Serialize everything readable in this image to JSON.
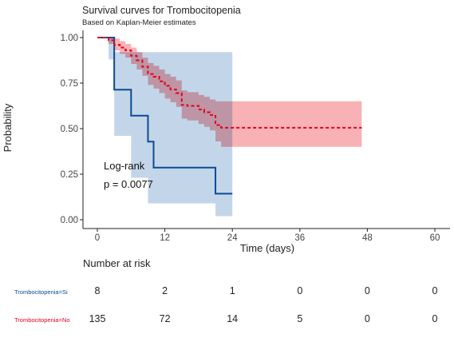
{
  "title": "Survival curves for Trombocitopenia",
  "subtitle": "Based on Kaplan-Meier estimates",
  "colors": {
    "si": "#0b4a96",
    "no": "#e3001b",
    "si_band": "#a9c5df",
    "no_band": "#f7a4a8",
    "overlap": "#c9717e"
  },
  "annotation": {
    "line1": "Log-rank",
    "line2": "p = 0.0077"
  },
  "chart_data": {
    "type": "line",
    "title": "Survival curves for Trombocitopenia",
    "subtitle": "Based on Kaplan-Meier estimates",
    "xlabel": "Time (days)",
    "ylabel": "Probability",
    "xlim": [
      0,
      60
    ],
    "ylim": [
      0,
      1
    ],
    "xticks": [
      0,
      12,
      24,
      36,
      48,
      60
    ],
    "yticks": [
      0,
      0.25,
      0.5,
      0.75,
      1
    ],
    "xtick_labels": [
      "0",
      "12",
      "24",
      "36",
      "48",
      "60"
    ],
    "ytick_labels": [
      "0.00",
      "0.25",
      "0.50",
      "0.75",
      "1.00"
    ],
    "grid": false,
    "series": [
      {
        "name": "Trombocitopenia=Si",
        "color": "#0b4a96",
        "style": "solid",
        "steps": [
          [
            0,
            1.0
          ],
          [
            3,
            0.714
          ],
          [
            6,
            0.571
          ],
          [
            9,
            0.429
          ],
          [
            10,
            0.286
          ],
          [
            21,
            0.143
          ],
          [
            24,
            0.143
          ]
        ],
        "ci_upper": [
          [
            0,
            1.0
          ],
          [
            3,
            0.92
          ],
          [
            24,
            0.92
          ]
        ],
        "ci_lower": [
          [
            0,
            1.0
          ],
          [
            2,
            0.88
          ],
          [
            3,
            0.46
          ],
          [
            6,
            0.23
          ],
          [
            9,
            0.09
          ],
          [
            21,
            0.02
          ],
          [
            24,
            0.02
          ]
        ]
      },
      {
        "name": "Trombocitopenia=No",
        "color": "#e3001b",
        "style": "dashed",
        "steps": [
          [
            0,
            1.0
          ],
          [
            2,
            0.985
          ],
          [
            3,
            0.96
          ],
          [
            4,
            0.945
          ],
          [
            5,
            0.93
          ],
          [
            6,
            0.9
          ],
          [
            7,
            0.875
          ],
          [
            8,
            0.84
          ],
          [
            9,
            0.8
          ],
          [
            10,
            0.785
          ],
          [
            11,
            0.76
          ],
          [
            12,
            0.735
          ],
          [
            13,
            0.715
          ],
          [
            14,
            0.695
          ],
          [
            15,
            0.63
          ],
          [
            16,
            0.625
          ],
          [
            18,
            0.605
          ],
          [
            19,
            0.59
          ],
          [
            20,
            0.575
          ],
          [
            21,
            0.52
          ],
          [
            22,
            0.505
          ],
          [
            47,
            0.505
          ]
        ],
        "ci_upper": [
          [
            0,
            1.0
          ],
          [
            2,
            1.0
          ],
          [
            3,
            0.995
          ],
          [
            4,
            0.98
          ],
          [
            5,
            0.965
          ],
          [
            6,
            0.945
          ],
          [
            7,
            0.92
          ],
          [
            8,
            0.89
          ],
          [
            9,
            0.86
          ],
          [
            10,
            0.845
          ],
          [
            11,
            0.825
          ],
          [
            12,
            0.8
          ],
          [
            13,
            0.785
          ],
          [
            14,
            0.765
          ],
          [
            15,
            0.71
          ],
          [
            16,
            0.7
          ],
          [
            18,
            0.685
          ],
          [
            19,
            0.675
          ],
          [
            20,
            0.66
          ],
          [
            21,
            0.65
          ],
          [
            47,
            0.65
          ]
        ],
        "ci_lower": [
          [
            0,
            1.0
          ],
          [
            2,
            0.965
          ],
          [
            3,
            0.93
          ],
          [
            4,
            0.91
          ],
          [
            5,
            0.89
          ],
          [
            6,
            0.855
          ],
          [
            7,
            0.825
          ],
          [
            8,
            0.79
          ],
          [
            9,
            0.74
          ],
          [
            10,
            0.72
          ],
          [
            11,
            0.695
          ],
          [
            12,
            0.665
          ],
          [
            13,
            0.645
          ],
          [
            14,
            0.62
          ],
          [
            15,
            0.555
          ],
          [
            16,
            0.545
          ],
          [
            18,
            0.525
          ],
          [
            19,
            0.51
          ],
          [
            20,
            0.49
          ],
          [
            21,
            0.43
          ],
          [
            22,
            0.4
          ],
          [
            47,
            0.4
          ]
        ]
      }
    ],
    "annotations": [
      "Log-rank",
      "p = 0.0077"
    ]
  },
  "risk_table": {
    "title": "Number at risk",
    "times": [
      0,
      12,
      24,
      36,
      48,
      60
    ],
    "rows": [
      {
        "label": "Trombocitopenia=Si",
        "color": "#0b4a96",
        "values": [
          "8",
          "2",
          "1",
          "0",
          "0",
          "0"
        ]
      },
      {
        "label": "Trombocitopenia=No",
        "color": "#e3001b",
        "values": [
          "135",
          "72",
          "14",
          "5",
          "0",
          "0"
        ]
      }
    ]
  }
}
